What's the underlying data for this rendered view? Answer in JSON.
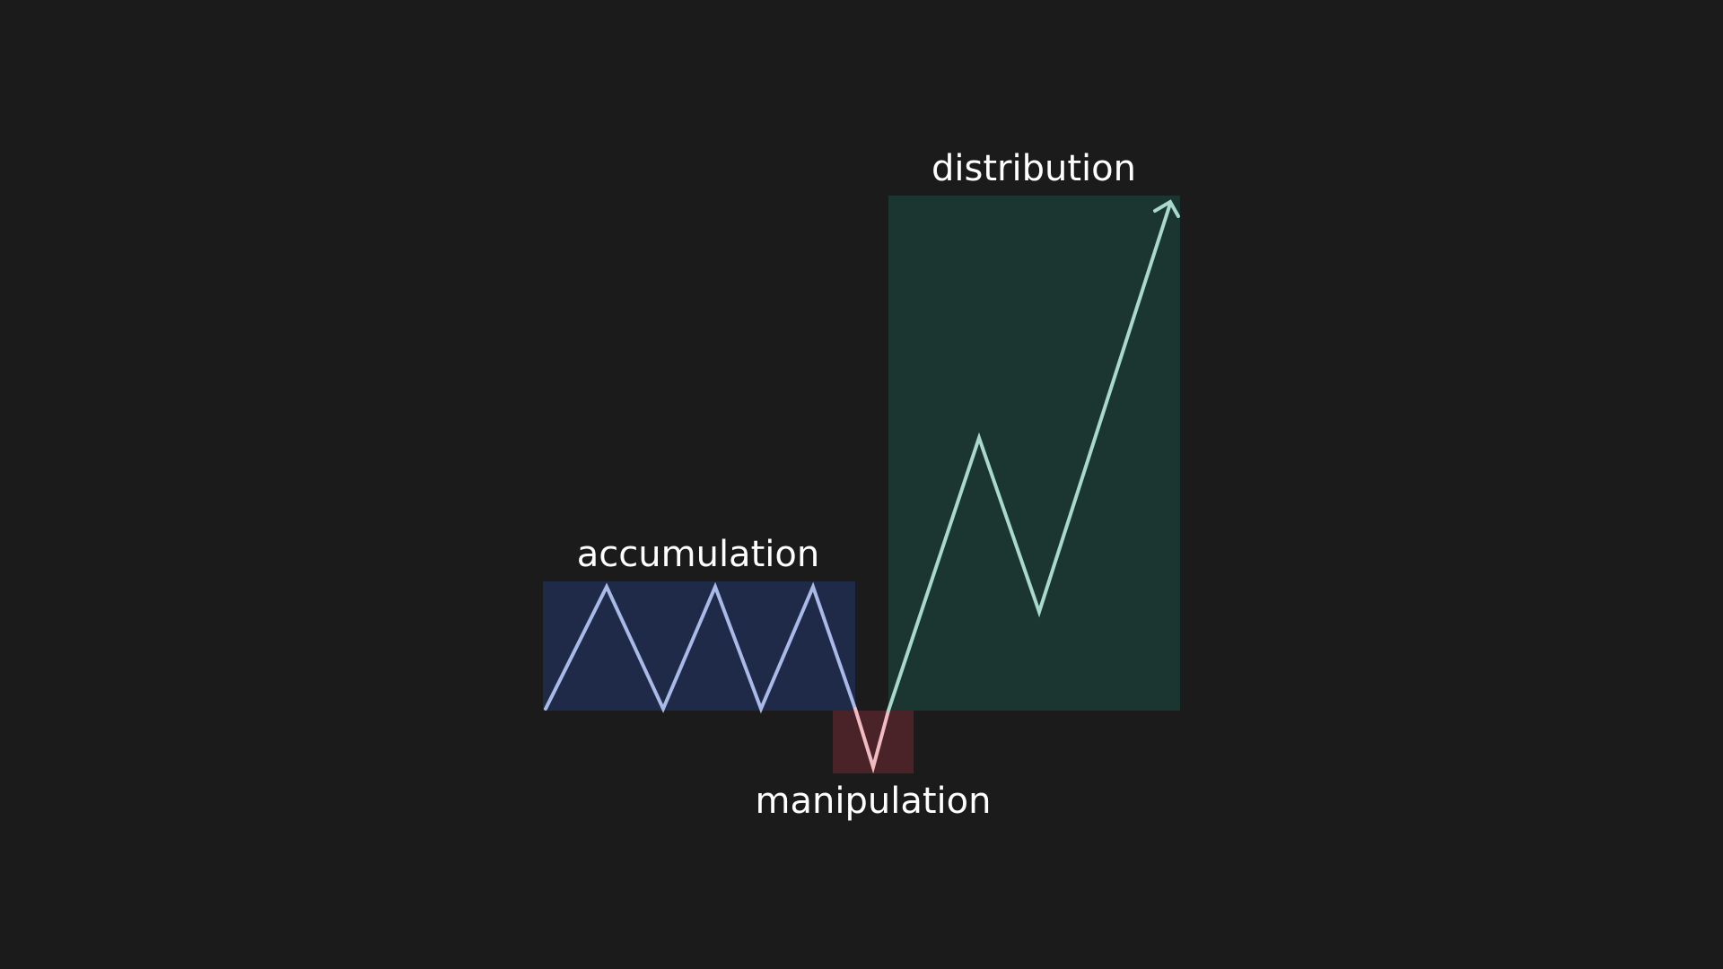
{
  "phases": [
    {
      "id": "accumulation",
      "label": "accumulation",
      "fill": "#1e2a47"
    },
    {
      "id": "manipulation",
      "label": "manipulation",
      "fill": "#4a2328"
    },
    {
      "id": "distribution",
      "label": "distribution",
      "fill": "#1b3530"
    }
  ],
  "colors": {
    "background": "#1b1b1b",
    "accumulation_line": "#a9b9e8",
    "manipulation_line": "#f0bcc2",
    "distribution_line": "#a9d8cd",
    "label_text": "#ffffff"
  },
  "icons": {
    "arrow_head": "arrow-up-right-icon"
  }
}
